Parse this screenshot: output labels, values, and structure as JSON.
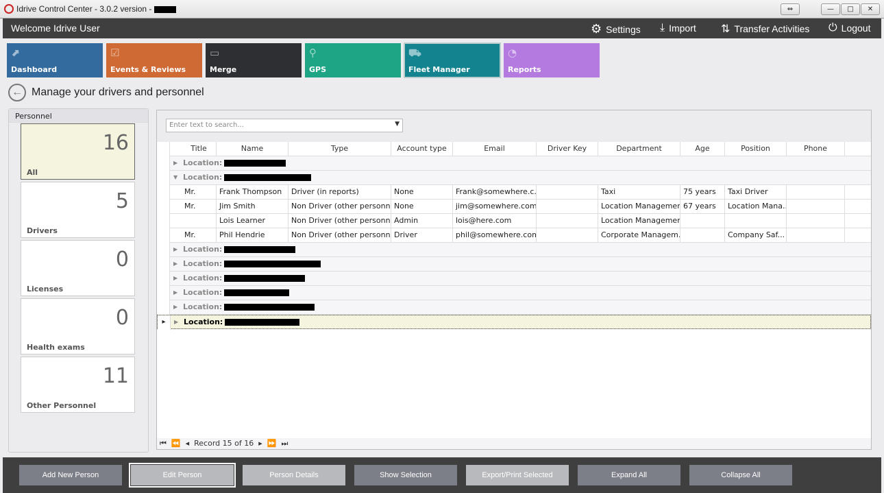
{
  "window": {
    "title": "Idrive Control Center - 3.0.2 version -",
    "buttons": [
      "⇔",
      "—",
      "□",
      "✕"
    ]
  },
  "header": {
    "welcome": "Welcome Idrive User",
    "settings": "Settings",
    "import": "Import",
    "transfer": "Transfer Activities",
    "logout": "Logout"
  },
  "tiles": [
    {
      "label": "Dashboard",
      "color": "#336b9f",
      "icon": "chart-icon",
      "glyph": "⬈"
    },
    {
      "label": "Events & Reviews",
      "color": "#d06a34",
      "icon": "clipboard-icon",
      "glyph": "☑"
    },
    {
      "label": "Merge",
      "color": "#2d2f33",
      "icon": "merge-icon",
      "glyph": "▭"
    },
    {
      "label": "GPS",
      "color": "#1ea585",
      "icon": "map-pin-icon",
      "glyph": "⚲"
    },
    {
      "label": "Fleet Manager",
      "color": "#138390",
      "icon": "vehicles-icon",
      "glyph": "⛟",
      "active": true
    },
    {
      "label": "Reports",
      "color": "#b47ae0",
      "icon": "pie-chart-icon",
      "glyph": "◔"
    }
  ],
  "page": {
    "title": "Manage your drivers and personnel"
  },
  "personnel": {
    "header": "Personnel",
    "stats": [
      {
        "label": "All",
        "count": "16",
        "selected": true
      },
      {
        "label": "Drivers",
        "count": "5"
      },
      {
        "label": "Licenses",
        "count": "0"
      },
      {
        "label": "Health exams",
        "count": "0"
      },
      {
        "label": "Other Personnel",
        "count": "11"
      }
    ]
  },
  "grid": {
    "search_placeholder": "Enter text to search...",
    "columns": [
      "Title",
      "Name",
      "Type",
      "Account type",
      "Email",
      "Driver Key",
      "Department",
      "Age",
      "Position",
      "Phone"
    ],
    "sort_column": "Name",
    "group_label": "Location:",
    "groups": [
      {
        "expanded": false,
        "rows": []
      },
      {
        "expanded": true,
        "rows": [
          [
            "Mr.",
            "Frank Thompson",
            "Driver (in reports)",
            "None",
            "Frank@somewhere.c...",
            "",
            "Taxi",
            "75 years",
            "Taxi Driver",
            ""
          ],
          [
            "Mr.",
            "Jim Smith",
            "Non Driver (other personnel)",
            "None",
            "jim@somewhere.com",
            "",
            "Location Management",
            "67 years",
            "Location Mana...",
            ""
          ],
          [
            "",
            "Lois Learner",
            "Non Driver (other personnel)",
            "Admin",
            "lois@here.com",
            "",
            "Location Management",
            "",
            "",
            ""
          ],
          [
            "Mr.",
            "Phil Hendrie",
            "Non Driver (other personnel)",
            "Driver",
            "phil@somewhere.com",
            "",
            "Corporate Managem...",
            "",
            "Company Saf...",
            ""
          ]
        ]
      },
      {
        "expanded": false,
        "rows": []
      },
      {
        "expanded": false,
        "rows": []
      },
      {
        "expanded": false,
        "rows": []
      },
      {
        "expanded": false,
        "rows": []
      },
      {
        "expanded": false,
        "rows": []
      },
      {
        "expanded": false,
        "rows": [],
        "focused": true
      }
    ],
    "pager": "Record 15 of 16"
  },
  "actions": [
    {
      "label": "Add New Person",
      "style": "dark"
    },
    {
      "label": "Edit Person",
      "style": "light",
      "focused": true
    },
    {
      "label": "Person Details",
      "style": "light"
    },
    {
      "label": "Show Selection",
      "style": "dark"
    },
    {
      "label": "Export/Print Selected",
      "style": "light"
    },
    {
      "label": "Expand All",
      "style": "dark"
    },
    {
      "label": "Collapse All",
      "style": "dark"
    }
  ]
}
